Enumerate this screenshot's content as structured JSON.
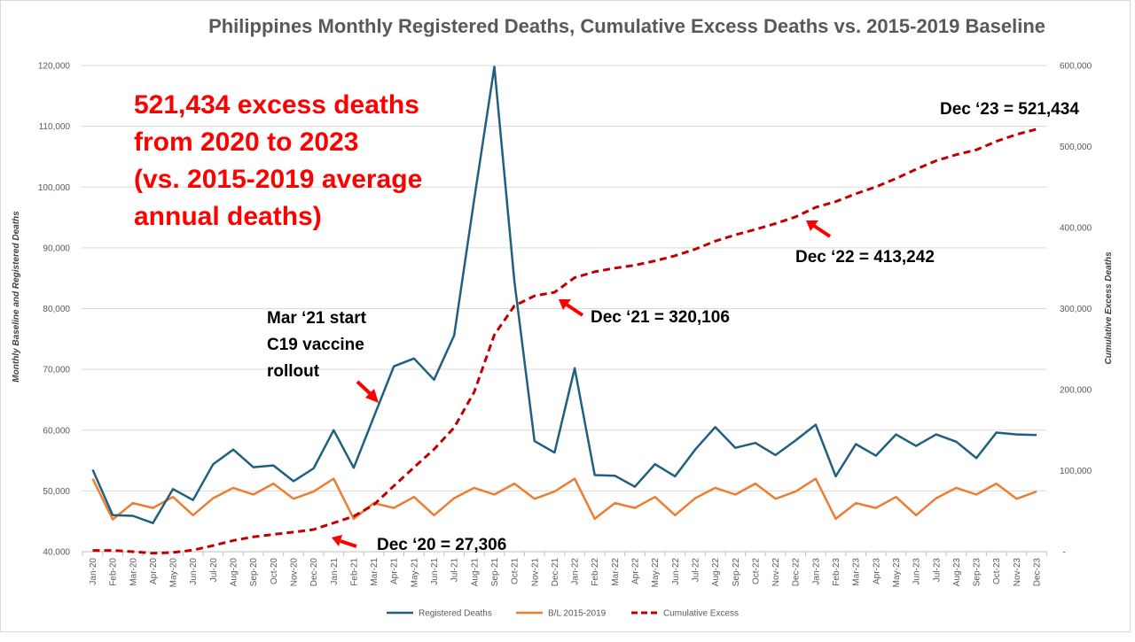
{
  "chart_data": {
    "type": "line",
    "title": "Philippines Monthly Registered Deaths, Cumulative Excess Deaths vs. 2015-2019 Baseline",
    "ylabel": "Monthly Baseline and Registered Deaths",
    "y2label": "Cumulative Excess Deaths",
    "ylim": [
      40000,
      120000
    ],
    "y2lim": [
      0,
      600000
    ],
    "yticks": [
      "40,000",
      "50,000",
      "60,000",
      "70,000",
      "80,000",
      "90,000",
      "100,000",
      "110,000",
      "120,000"
    ],
    "y2ticks": [
      "-",
      "100,000",
      "200,000",
      "300,000",
      "400,000",
      "500,000",
      "600,000"
    ],
    "grid": true,
    "legend_position": "bottom",
    "categories": [
      "Jan-20",
      "Feb-20",
      "Mar-20",
      "Apr-20",
      "May-20",
      "Jun-20",
      "Jul-20",
      "Aug-20",
      "Sep-20",
      "Oct-20",
      "Nov-20",
      "Dec-20",
      "Jan-21",
      "Feb-21",
      "Mar-21",
      "Apr-21",
      "May-21",
      "Jun-21",
      "Jul-21",
      "Aug-21",
      "Sep-21",
      "Oct-21",
      "Nov-21",
      "Dec-21",
      "Jan-22",
      "Feb-22",
      "Mar-22",
      "Apr-22",
      "May-22",
      "Jun-22",
      "Jul-22",
      "Aug-22",
      "Sep-22",
      "Oct-22",
      "Nov-22",
      "Dec-22",
      "Jan-23",
      "Feb-23",
      "Mar-23",
      "Apr-23",
      "May-23",
      "Jun-23",
      "Jul-23",
      "Aug-23",
      "Sep-23",
      "Oct-23",
      "Nov-23",
      "Dec-23"
    ],
    "series": [
      {
        "name": "Registered Deaths",
        "axis": "left",
        "color": "#1f5f7f",
        "style": "solid",
        "values": [
          53500,
          46000,
          45900,
          44700,
          50300,
          48500,
          54400,
          56800,
          53900,
          54200,
          51600,
          53700,
          60000,
          53800,
          62200,
          70500,
          71800,
          68300,
          75600,
          98000,
          119800,
          84500,
          58200,
          56300,
          70200,
          52600,
          52500,
          50700,
          54400,
          52400,
          56800,
          60500,
          57100,
          57900,
          55900,
          58300,
          60900,
          52400,
          57700,
          55800,
          59300,
          57400,
          59300,
          58100,
          55400,
          59600,
          59300,
          59200
        ]
      },
      {
        "name": "B/L 2015-2019",
        "axis": "left",
        "color": "#ed7d31",
        "style": "solid",
        "values": [
          52000,
          45300,
          48000,
          47200,
          49000,
          46000,
          48800,
          50500,
          49400,
          51200,
          48700,
          49900,
          52000,
          45400,
          48000,
          47200,
          49000,
          46000,
          48800,
          50500,
          49400,
          51200,
          48700,
          49900,
          52000,
          45400,
          48000,
          47200,
          49000,
          46000,
          48800,
          50500,
          49400,
          51200,
          48700,
          49900,
          52000,
          45400,
          48000,
          47200,
          49000,
          46000,
          48800,
          50500,
          49400,
          51200,
          48700,
          49900
        ]
      },
      {
        "name": "Cumulative Excess",
        "axis": "right",
        "color": "#c00000",
        "style": "dashed",
        "values": [
          1500,
          1500,
          0,
          -2000,
          -1000,
          2000,
          7500,
          13800,
          18300,
          21300,
          24200,
          27306,
          35500,
          43700,
          57900,
          81200,
          104000,
          126300,
          153200,
          197200,
          267600,
          303400,
          315700,
          320106,
          338300,
          345500,
          350000,
          353500,
          358900,
          365300,
          373300,
          383300,
          391000,
          397700,
          404900,
          413242,
          425000,
          432000,
          441700,
          450300,
          460600,
          472000,
          482500,
          490000,
          496000,
          506500,
          515000,
          521434
        ]
      }
    ],
    "annotations": {
      "headline": [
        "521,434 excess deaths",
        "from 2020 to 2023",
        "(vs. 2015-2019 average",
        "annual deaths)"
      ],
      "vaccine": [
        "Mar ‘21 start",
        "C19 vaccine",
        "rollout"
      ],
      "dec20": "Dec ‘20 = 27,306",
      "dec21": "Dec ‘21 = 320,106",
      "dec22": "Dec ‘22 = 413,242",
      "dec23": "Dec ‘23 = 521,434"
    }
  }
}
